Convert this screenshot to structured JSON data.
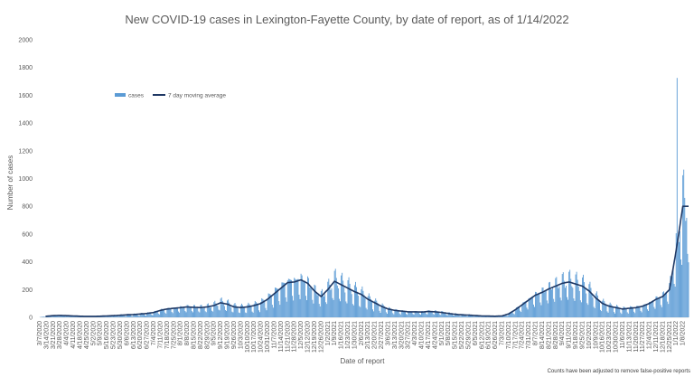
{
  "chart_data": {
    "type": "bar",
    "title": "New COVID-19 cases in Lexington-Fayette County, by date of report, as of 1/14/2022",
    "xlabel": "Date of report",
    "ylabel": "Number of cases",
    "ylim": [
      0,
      2000
    ],
    "yticks": [
      0,
      200,
      400,
      600,
      800,
      1000,
      1200,
      1400,
      1600,
      1800,
      2000
    ],
    "footnote": "Counts have been adjusted to remove false-positive reports",
    "legend": {
      "placement": "top-left",
      "entries": [
        "cases",
        "7 day moving average"
      ]
    },
    "colors": {
      "bars": "#5b9bd5",
      "line": "#1f3864"
    },
    "grid": false,
    "x_start": "3/7/2020",
    "x_end": "1/14/2022",
    "x_tick_labels": [
      "3/7/2020",
      "3/14/2020",
      "3/21/2020",
      "3/28/2020",
      "4/4/2020",
      "4/11/2020",
      "4/18/2020",
      "4/25/2020",
      "5/2/2020",
      "5/9/2020",
      "5/16/2020",
      "5/23/2020",
      "5/30/2020",
      "6/6/2020",
      "6/13/2020",
      "6/20/2020",
      "6/27/2020",
      "7/4/2020",
      "7/11/2020",
      "7/18/2020",
      "7/25/2020",
      "8/1/2020",
      "8/8/2020",
      "8/15/2020",
      "8/22/2020",
      "8/29/2020",
      "9/5/2020",
      "9/12/2020",
      "9/19/2020",
      "9/26/2020",
      "10/3/2020",
      "10/10/2020",
      "10/17/2020",
      "10/24/2020",
      "10/31/2020",
      "11/7/2020",
      "11/14/2020",
      "11/21/2020",
      "11/28/2020",
      "12/5/2020",
      "12/12/2020",
      "12/19/2020",
      "12/26/2020",
      "1/2/2021",
      "1/9/2021",
      "1/16/2021",
      "1/23/2021",
      "1/30/2021",
      "2/6/2021",
      "2/13/2021",
      "2/20/2021",
      "2/27/2021",
      "3/6/2021",
      "3/13/2021",
      "3/20/2021",
      "3/27/2021",
      "4/3/2021",
      "4/10/2021",
      "4/17/2021",
      "4/24/2021",
      "5/1/2021",
      "5/8/2021",
      "5/15/2021",
      "5/22/2021",
      "5/29/2021",
      "6/5/2021",
      "6/12/2021",
      "6/19/2021",
      "6/26/2021",
      "7/3/2021",
      "7/10/2021",
      "7/17/2021",
      "7/24/2021",
      "7/31/2021",
      "8/7/2021",
      "8/14/2021",
      "8/21/2021",
      "8/28/2021",
      "9/4/2021",
      "9/11/2021",
      "9/18/2021",
      "9/25/2021",
      "10/2/2021",
      "10/9/2021",
      "10/16/2021",
      "10/23/2021",
      "10/30/2021",
      "11/6/2021",
      "11/13/2021",
      "11/20/2021",
      "11/27/2021",
      "12/4/2021",
      "12/11/2021",
      "12/18/2021",
      "12/25/2021",
      "1/1/2022",
      "1/8/2022"
    ],
    "weekly_avg_daily_cases": [
      1,
      8,
      12,
      14,
      12,
      10,
      8,
      7,
      7,
      8,
      10,
      12,
      15,
      18,
      20,
      24,
      28,
      35,
      50,
      60,
      65,
      70,
      75,
      72,
      70,
      75,
      85,
      105,
      95,
      75,
      70,
      75,
      85,
      100,
      130,
      170,
      210,
      250,
      255,
      270,
      245,
      190,
      150,
      200,
      260,
      235,
      210,
      185,
      165,
      130,
      105,
      80,
      60,
      50,
      45,
      40,
      40,
      38,
      42,
      40,
      35,
      28,
      22,
      18,
      16,
      13,
      10,
      9,
      8,
      10,
      25,
      55,
      90,
      125,
      160,
      180,
      205,
      225,
      245,
      255,
      240,
      225,
      190,
      140,
      100,
      80,
      70,
      60,
      65,
      70,
      80,
      100,
      130,
      150,
      200,
      480,
      800
    ]
  }
}
